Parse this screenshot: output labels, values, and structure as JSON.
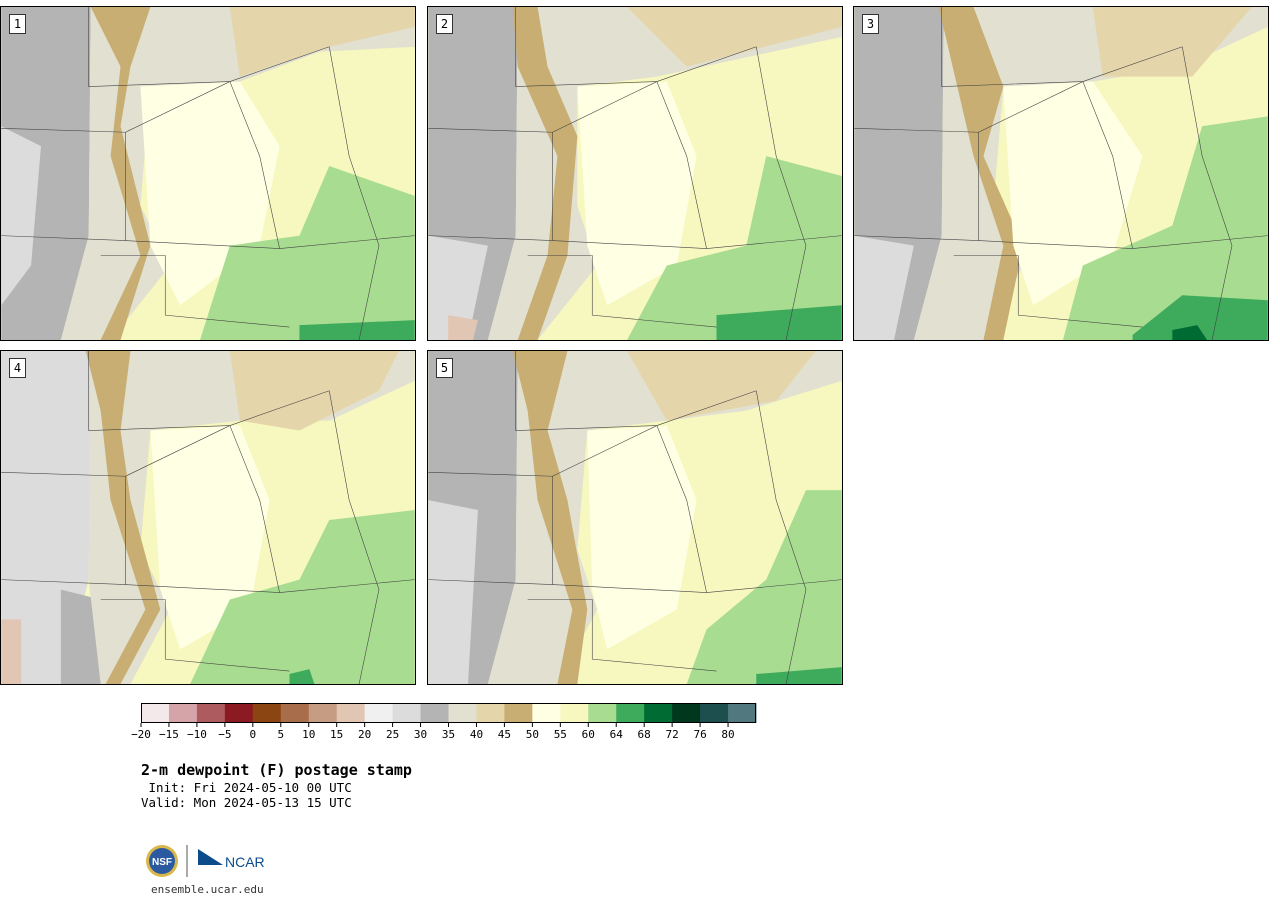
{
  "panels": [
    {
      "label": "1"
    },
    {
      "label": "2"
    },
    {
      "label": "3"
    },
    {
      "label": "4"
    },
    {
      "label": "5"
    }
  ],
  "colorbar": {
    "colors": [
      "#f3e9ea",
      "#d5a4a8",
      "#ae5b60",
      "#8b1a22",
      "#8b4513",
      "#a86e4c",
      "#c69c82",
      "#e2c6b4",
      "#f0f0f0",
      "#dcdcdc",
      "#b4b4b4",
      "#e1e0d1",
      "#e5d5aa",
      "#c8ae72",
      "#ffffe4",
      "#f6f8bf",
      "#a8dc90",
      "#3daa5c",
      "#006b33",
      "#00381e",
      "#1e4f4f",
      "#50787e"
    ],
    "ticks": [
      "−20",
      "−15",
      "−10",
      "−5",
      "0",
      "5",
      "10",
      "15",
      "20",
      "25",
      "30",
      "35",
      "40",
      "45",
      "50",
      "55",
      "60",
      "64",
      "68",
      "72",
      "76",
      "80"
    ]
  },
  "title": "2-m dewpoint (F) postage stamp",
  "init_line": " Init: Fri 2024-05-10 00 UTC",
  "valid_line": "Valid: Mon 2024-05-13 15 UTC",
  "website": "ensemble.ucar.edu",
  "logos": {
    "nsf": "NSF",
    "ncar": "NCAR"
  }
}
